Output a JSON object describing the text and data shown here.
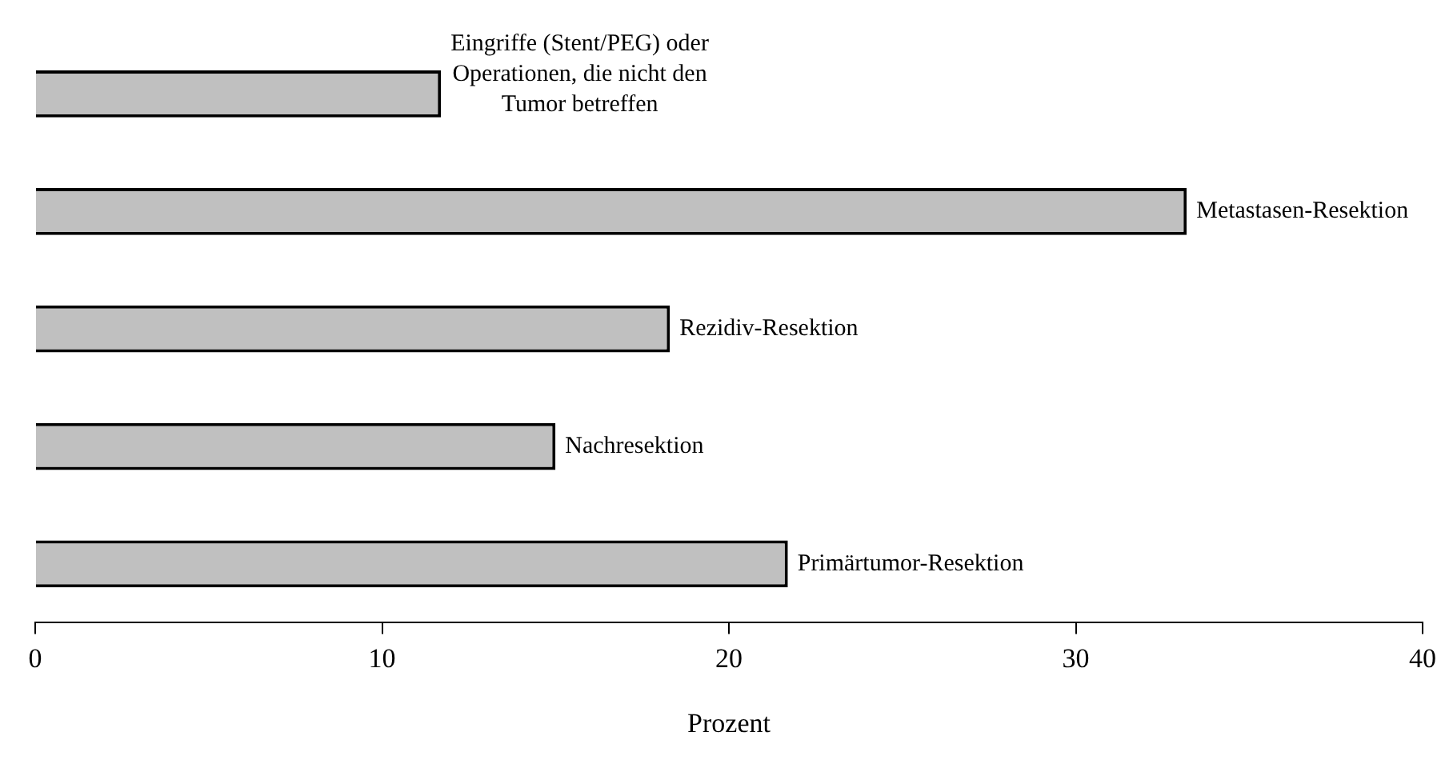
{
  "chart_data": {
    "type": "bar",
    "orientation": "horizontal",
    "categories": [
      "Eingriffe (Stent/PEG) oder Operationen, die nicht den Tumor betreffen",
      "Metastasen-Resektion",
      "Rezidiv-Resektion",
      "Nachresektion",
      "Primärtumor-Resektion"
    ],
    "values": [
      11.7,
      33.2,
      18.3,
      15.0,
      21.7
    ],
    "color": "#c0c0c0",
    "xlim": [
      0,
      40
    ],
    "xticks": [
      0,
      10,
      20,
      30,
      40
    ],
    "xlabel": "Prozent",
    "tick_labels": "x",
    "grid": false,
    "legend": false
  }
}
